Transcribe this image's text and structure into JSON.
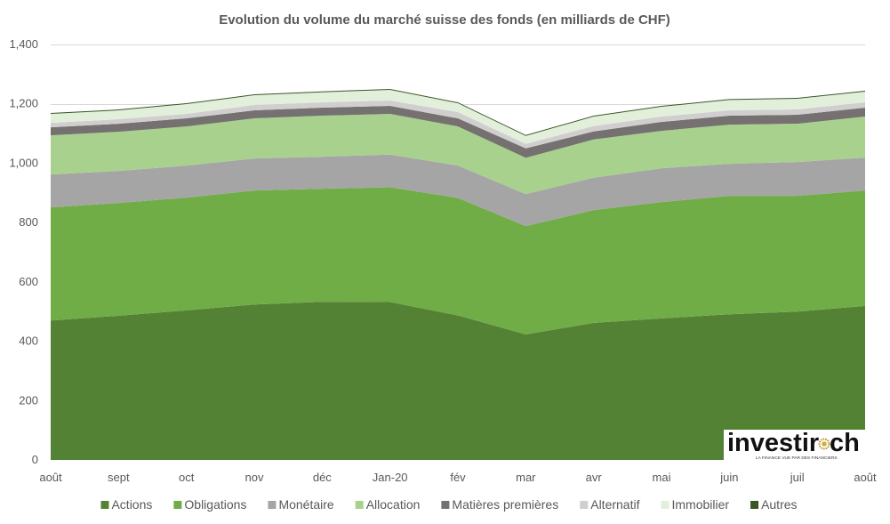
{
  "chart_data": {
    "type": "area",
    "stacked": true,
    "title": "Evolution du volume du marché suisse des fonds (en milliards de CHF)",
    "xlabel": "",
    "ylabel": "",
    "categories": [
      "août",
      "sept",
      "oct",
      "nov",
      "déc",
      "Jan-20",
      "fév",
      "mar",
      "avr",
      "mai",
      "juin",
      "juil",
      "août"
    ],
    "ylim": [
      0,
      1400
    ],
    "yticks": [
      0,
      200,
      400,
      600,
      800,
      1000,
      1200,
      1400
    ],
    "ytick_labels": [
      "0",
      "200",
      "400",
      "600",
      "800",
      "1,000",
      "1,200",
      "1,400"
    ],
    "grid": true,
    "legend_position": "bottom",
    "series": [
      {
        "name": "Actions",
        "color": "#548235",
        "values": [
          470,
          486,
          504,
          524,
          533,
          532,
          487,
          423,
          462,
          477,
          491,
          500,
          519
        ]
      },
      {
        "name": "Obligations",
        "color": "#70AD47",
        "values": [
          381,
          380,
          380,
          384,
          381,
          387,
          396,
          365,
          380,
          392,
          399,
          390,
          389
        ]
      },
      {
        "name": "Monétaire",
        "color": "#A5A5A5",
        "values": [
          111,
          108,
          108,
          108,
          108,
          110,
          109,
          108,
          109,
          114,
          108,
          114,
          111
        ]
      },
      {
        "name": "Allocation",
        "color": "#A9D18E",
        "values": [
          132,
          132,
          132,
          135,
          138,
          137,
          132,
          122,
          129,
          126,
          132,
          129,
          138
        ]
      },
      {
        "name": "Matières premières",
        "color": "#757171",
        "values": [
          27,
          27,
          27,
          27,
          27,
          27,
          27,
          32,
          27,
          30,
          30,
          30,
          30
        ]
      },
      {
        "name": "Alternatif",
        "color": "#D0CECE",
        "values": [
          15,
          15,
          15,
          18,
          18,
          18,
          21,
          15,
          18,
          18,
          18,
          18,
          18
        ]
      },
      {
        "name": "Immobilier",
        "color": "#E2EFDA",
        "values": [
          30,
          30,
          33,
          33,
          34,
          36,
          30,
          27,
          32,
          33,
          35,
          36,
          36
        ]
      },
      {
        "name": "Autres",
        "color": "#375623",
        "values": [
          3,
          3,
          3,
          3,
          3,
          3,
          3,
          3,
          3,
          3,
          3,
          3,
          3
        ]
      }
    ]
  },
  "logo": {
    "text_left": "investir",
    "text_right": "ch",
    "icon": "sun-icon",
    "tagline": "LA FINANCE VUE PAR DES FINANCIERS"
  }
}
